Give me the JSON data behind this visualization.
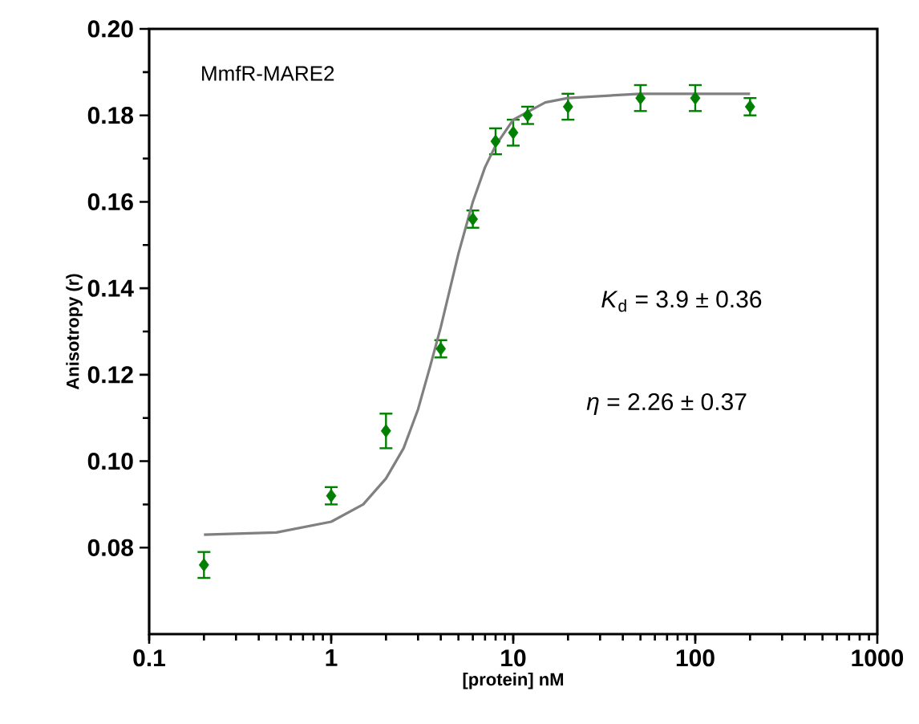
{
  "chart_data": {
    "type": "scatter",
    "xlabel": "[protein] nM",
    "ylabel": "Anisotropy (r)",
    "log": "x",
    "xlim": [
      0.1,
      1000
    ],
    "ylim": [
      0.06,
      0.2
    ],
    "xticks": [
      0.1,
      1,
      10,
      100,
      1000
    ],
    "yticks": [
      0.08,
      {
        "value": 0.1,
        "label": "0.10"
      },
      0.12,
      0.14,
      0.16,
      0.18,
      {
        "value": 0.2,
        "label": "0.20"
      }
    ],
    "annotations": [
      "MmfR-MARE2",
      "*K*$_{d}$ = 3.9 ± 0.36",
      "*η* = 2.26 ± 0.37"
    ],
    "grid": false,
    "series": [
      {
        "color": "#008000",
        "marker": "diamond",
        "x": [
          0.2,
          1,
          2,
          4,
          6,
          8,
          10,
          12,
          20,
          50,
          100,
          200
        ],
        "values": [
          0.076,
          0.092,
          0.107,
          0.126,
          0.156,
          0.174,
          0.176,
          0.18,
          0.182,
          0.184,
          0.184,
          0.182
        ],
        "errors": [
          0.003,
          0.002,
          0.004,
          0.002,
          0.002,
          0.003,
          0.003,
          0.002,
          0.003,
          0.003,
          0.003,
          0.002
        ]
      },
      {
        "type": "line",
        "color": "#808080",
        "marker": "none",
        "line_style": "solid",
        "x": [
          0.2,
          0.5,
          1,
          1.5,
          2,
          2.5,
          3,
          3.5,
          4,
          5,
          6,
          7,
          8,
          10,
          15,
          20,
          50,
          200
        ],
        "values": [
          0.083,
          0.0835,
          0.086,
          0.09,
          0.096,
          0.103,
          0.112,
          0.122,
          0.131,
          0.148,
          0.16,
          0.168,
          0.173,
          0.179,
          0.183,
          0.184,
          0.185,
          0.185
        ]
      }
    ]
  }
}
